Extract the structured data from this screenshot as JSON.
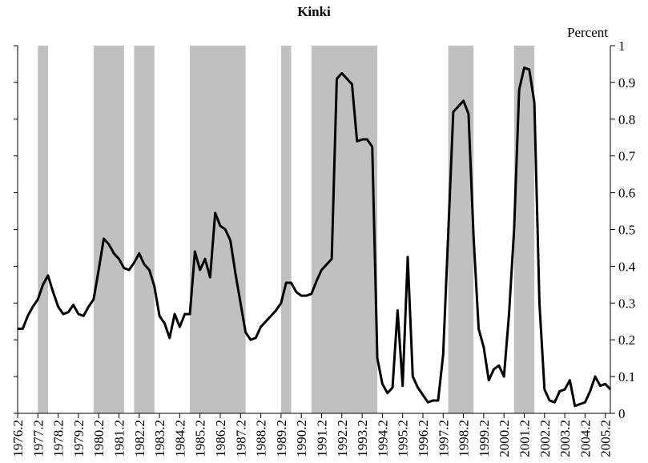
{
  "chart_data": {
    "type": "line",
    "title": "Kinki",
    "y_label": "Percent",
    "x": [
      1976.25,
      1976.5,
      1976.75,
      1977,
      1977.25,
      1977.5,
      1977.75,
      1978,
      1978.25,
      1978.5,
      1978.75,
      1979,
      1979.25,
      1979.5,
      1979.75,
      1980,
      1980.25,
      1980.5,
      1980.75,
      1981,
      1981.25,
      1981.5,
      1981.75,
      1982,
      1982.25,
      1982.5,
      1982.75,
      1983,
      1983.25,
      1983.5,
      1983.75,
      1984,
      1984.25,
      1984.5,
      1984.75,
      1985,
      1985.25,
      1985.5,
      1985.75,
      1986,
      1986.25,
      1986.5,
      1986.75,
      1987,
      1987.25,
      1987.5,
      1987.75,
      1988,
      1988.25,
      1988.5,
      1988.75,
      1989,
      1989.25,
      1989.5,
      1989.75,
      1990,
      1990.25,
      1990.5,
      1990.75,
      1991,
      1991.25,
      1991.5,
      1991.75,
      1992,
      1992.25,
      1992.5,
      1992.75,
      1993,
      1993.25,
      1993.5,
      1993.75,
      1994,
      1994.25,
      1994.5,
      1994.75,
      1995,
      1995.25,
      1995.5,
      1995.75,
      1996,
      1996.25,
      1996.5,
      1996.75,
      1997,
      1997.25,
      1997.5,
      1997.75,
      1998,
      1998.25,
      1998.5,
      1998.75,
      1999,
      1999.25,
      1999.5,
      1999.75,
      2000,
      2000.25,
      2000.5,
      2000.75,
      2001,
      2001.25,
      2001.5,
      2001.75,
      2002,
      2002.25,
      2002.5,
      2002.75,
      2003,
      2003.25,
      2003.5,
      2003.75,
      2004,
      2004.25,
      2004.5,
      2004.75,
      2005,
      2005.25,
      2005.5
    ],
    "series": [
      {
        "color": "#000000",
        "values": [
          0.23,
          0.23,
          0.265,
          0.29,
          0.31,
          0.35,
          0.375,
          0.33,
          0.29,
          0.27,
          0.275,
          0.295,
          0.27,
          0.265,
          0.29,
          0.31,
          0.39,
          0.475,
          0.46,
          0.435,
          0.42,
          0.395,
          0.39,
          0.41,
          0.435,
          0.405,
          0.39,
          0.345,
          0.265,
          0.245,
          0.205,
          0.27,
          0.235,
          0.27,
          0.27,
          0.44,
          0.39,
          0.42,
          0.37,
          0.545,
          0.51,
          0.5,
          0.47,
          0.38,
          0.3,
          0.22,
          0.2,
          0.205,
          0.235,
          0.25,
          0.265,
          0.28,
          0.3,
          0.355,
          0.355,
          0.33,
          0.32,
          0.32,
          0.325,
          0.36,
          0.39,
          0.405,
          0.42,
          0.91,
          0.925,
          0.91,
          0.895,
          0.74,
          0.745,
          0.745,
          0.725,
          0.15,
          0.08,
          0.055,
          0.07,
          0.28,
          0.075,
          0.425,
          0.1,
          0.07,
          0.05,
          0.03,
          0.035,
          0.035,
          0.16,
          0.49,
          0.82,
          0.835,
          0.85,
          0.815,
          0.48,
          0.23,
          0.18,
          0.09,
          0.12,
          0.13,
          0.1,
          0.27,
          0.5,
          0.88,
          0.94,
          0.935,
          0.845,
          0.3,
          0.065,
          0.035,
          0.03,
          0.06,
          0.065,
          0.09,
          0.02,
          0.025,
          0.03,
          0.06,
          0.1,
          0.075,
          0.08,
          0.065
        ]
      }
    ],
    "shaded_periods": [
      [
        1977.25,
        1977.75
      ],
      [
        1980,
        1981.5
      ],
      [
        1982,
        1983
      ],
      [
        1984.75,
        1987.5
      ],
      [
        1989.25,
        1989.75
      ],
      [
        1990.75,
        1994
      ],
      [
        1997.5,
        1998.75
      ],
      [
        2000.75,
        2001.75
      ]
    ],
    "shade_color": "#c0c0c0",
    "xlim": [
      1976.25,
      2005.5
    ],
    "xticks": [
      {
        "value": 1976.25,
        "label": "1976.2"
      },
      {
        "value": 1977.25,
        "label": "1977.2"
      },
      {
        "value": 1978.25,
        "label": "1978.2"
      },
      {
        "value": 1979.25,
        "label": "1979.2"
      },
      {
        "value": 1980.25,
        "label": "1980.2"
      },
      {
        "value": 1981.25,
        "label": "1981.2"
      },
      {
        "value": 1982.25,
        "label": "1982.2"
      },
      {
        "value": 1983.25,
        "label": "1983.2"
      },
      {
        "value": 1984.25,
        "label": "1984.2"
      },
      {
        "value": 1985.25,
        "label": "1985.2"
      },
      {
        "value": 1986.25,
        "label": "1986.2"
      },
      {
        "value": 1987.25,
        "label": "1987.2"
      },
      {
        "value": 1988.25,
        "label": "1988.2"
      },
      {
        "value": 1989.25,
        "label": "1989.2"
      },
      {
        "value": 1990.25,
        "label": "1990.2"
      },
      {
        "value": 1991.25,
        "label": "1991.2"
      },
      {
        "value": 1992.25,
        "label": "1992.2"
      },
      {
        "value": 1993.25,
        "label": "1993.2"
      },
      {
        "value": 1994.25,
        "label": "1994.2"
      },
      {
        "value": 1995.25,
        "label": "1995.2"
      },
      {
        "value": 1996.25,
        "label": "1996.2"
      },
      {
        "value": 1997.25,
        "label": "1997.2"
      },
      {
        "value": 1998.25,
        "label": "1998.2"
      },
      {
        "value": 1999.25,
        "label": "1999.2"
      },
      {
        "value": 2000.25,
        "label": "2000.2"
      },
      {
        "value": 2001.25,
        "label": "2001.2"
      },
      {
        "value": 2002.25,
        "label": "2002.2"
      },
      {
        "value": 2003.25,
        "label": "2003.2"
      },
      {
        "value": 2004.25,
        "label": "2004.2"
      },
      {
        "value": 2005.25,
        "label": "2005.2"
      }
    ],
    "ylim": [
      0,
      1
    ],
    "yticks": [
      0,
      0.1,
      0.2,
      0.3,
      0.4,
      0.5,
      0.6,
      0.7,
      0.8,
      0.9,
      1
    ],
    "y_axis_side": "right",
    "grid": false
  }
}
